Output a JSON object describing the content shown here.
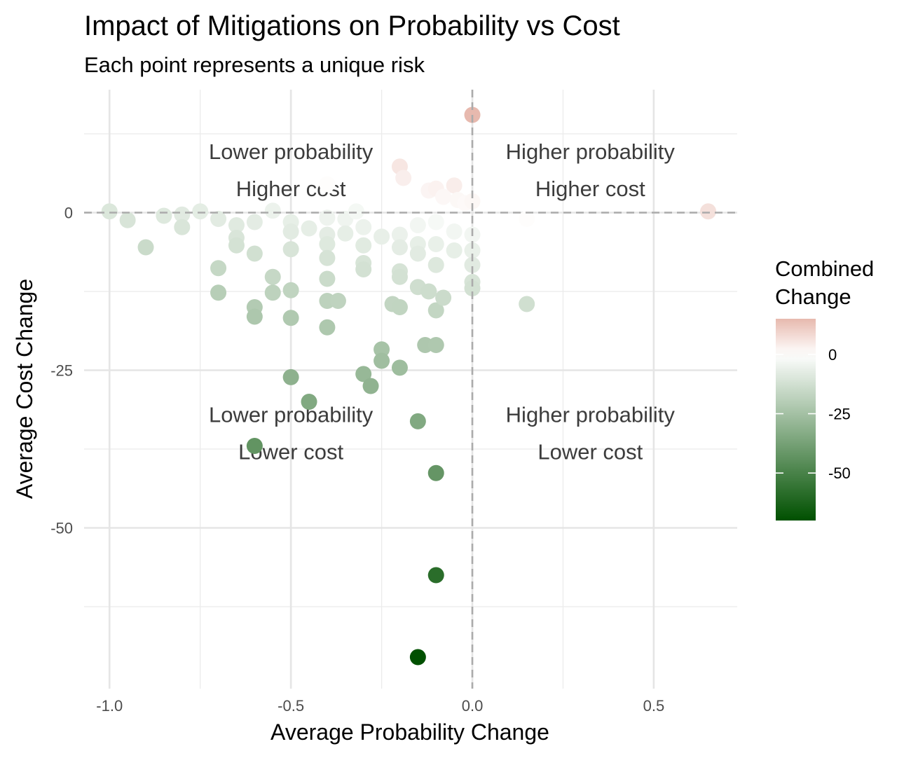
{
  "chart_data": {
    "type": "scatter",
    "title": "Impact of Mitigations on Probability vs Cost",
    "subtitle": "Each point represents a unique risk",
    "xlabel": "Average Probability Change",
    "ylabel": "Average Cost Change",
    "xlim": [
      -1.07,
      0.73
    ],
    "ylim": [
      -75.5,
      19.5
    ],
    "x_ticks": [
      -1.0,
      -0.5,
      0.0,
      0.5
    ],
    "x_tick_labels": [
      "-1.0",
      "-0.5",
      "0.0",
      "0.5"
    ],
    "y_ticks": [
      -50,
      -25,
      0
    ],
    "y_tick_labels": [
      "-50",
      "-25",
      "0"
    ],
    "grid": true,
    "reference_lines": {
      "x": 0,
      "y": 0
    },
    "quadrant_labels": [
      {
        "lines": [
          "Lower probability",
          "Higher cost"
        ]
      },
      {
        "lines": [
          "Higher probability",
          "Higher cost"
        ]
      },
      {
        "lines": [
          "Lower probability",
          "Lower cost"
        ]
      },
      {
        "lines": [
          "Higher probability",
          "Lower cost"
        ]
      }
    ],
    "legend": {
      "title": [
        "Combined",
        "Change"
      ],
      "placement": "right",
      "min": -70,
      "max": 15,
      "ticks": [
        0,
        -25,
        -50
      ],
      "tick_labels": [
        "0",
        "-25",
        "-50"
      ],
      "low_color": "#005000",
      "mid_color": "#ffffff",
      "high_color": "#e7b9ae"
    },
    "points": [
      {
        "x": 0.0,
        "y": 15.5
      },
      {
        "x": -0.2,
        "y": 7.3
      },
      {
        "x": -0.19,
        "y": 5.5
      },
      {
        "x": -0.05,
        "y": 4.3
      },
      {
        "x": -0.12,
        "y": 3.5
      },
      {
        "x": -0.1,
        "y": 3.8
      },
      {
        "x": -0.08,
        "y": 2.5
      },
      {
        "x": -0.04,
        "y": 2.0
      },
      {
        "x": -0.4,
        "y": 4.5
      },
      {
        "x": -0.02,
        "y": 1.5
      },
      {
        "x": 0.0,
        "y": 1.8
      },
      {
        "x": -1.0,
        "y": 0.2
      },
      {
        "x": -0.95,
        "y": -1.2
      },
      {
        "x": -0.9,
        "y": -5.5
      },
      {
        "x": -0.85,
        "y": -0.5
      },
      {
        "x": -0.8,
        "y": -0.3
      },
      {
        "x": -0.8,
        "y": -2.3
      },
      {
        "x": -0.75,
        "y": 0.2
      },
      {
        "x": -0.7,
        "y": -1.0
      },
      {
        "x": -0.7,
        "y": -8.8
      },
      {
        "x": -0.7,
        "y": -12.7
      },
      {
        "x": -0.65,
        "y": -2.0
      },
      {
        "x": -0.65,
        "y": -4.0
      },
      {
        "x": -0.65,
        "y": -5.2
      },
      {
        "x": -0.6,
        "y": -1.5
      },
      {
        "x": -0.6,
        "y": -6.5
      },
      {
        "x": -0.6,
        "y": -15.0
      },
      {
        "x": -0.6,
        "y": -16.5
      },
      {
        "x": -0.6,
        "y": -37.0
      },
      {
        "x": -0.55,
        "y": 0.3
      },
      {
        "x": -0.55,
        "y": -10.2
      },
      {
        "x": -0.55,
        "y": -12.7
      },
      {
        "x": -0.5,
        "y": -1.5
      },
      {
        "x": -0.5,
        "y": -3.0
      },
      {
        "x": -0.5,
        "y": -5.8
      },
      {
        "x": -0.5,
        "y": -12.3
      },
      {
        "x": -0.5,
        "y": -16.7
      },
      {
        "x": -0.5,
        "y": -26.1
      },
      {
        "x": -0.45,
        "y": -2.5
      },
      {
        "x": -0.45,
        "y": -30.0
      },
      {
        "x": -0.4,
        "y": -0.8
      },
      {
        "x": -0.4,
        "y": -3.5
      },
      {
        "x": -0.4,
        "y": -5.0
      },
      {
        "x": -0.4,
        "y": -7.2
      },
      {
        "x": -0.4,
        "y": -10.5
      },
      {
        "x": -0.4,
        "y": -14.0
      },
      {
        "x": -0.4,
        "y": -18.2
      },
      {
        "x": -0.37,
        "y": -14.0
      },
      {
        "x": -0.35,
        "y": -1.0
      },
      {
        "x": -0.35,
        "y": -3.3
      },
      {
        "x": -0.32,
        "y": 0.2
      },
      {
        "x": -0.3,
        "y": -2.3
      },
      {
        "x": -0.3,
        "y": -5.2
      },
      {
        "x": -0.3,
        "y": -8.0
      },
      {
        "x": -0.3,
        "y": -9.0
      },
      {
        "x": -0.3,
        "y": -25.6
      },
      {
        "x": -0.28,
        "y": -27.5
      },
      {
        "x": -0.25,
        "y": -3.8
      },
      {
        "x": -0.25,
        "y": -21.7
      },
      {
        "x": -0.25,
        "y": -23.5
      },
      {
        "x": -0.22,
        "y": -14.5
      },
      {
        "x": -0.2,
        "y": -3.5
      },
      {
        "x": -0.2,
        "y": -5.5
      },
      {
        "x": -0.2,
        "y": -9.3
      },
      {
        "x": -0.2,
        "y": -10.2
      },
      {
        "x": -0.2,
        "y": -15.0
      },
      {
        "x": -0.2,
        "y": -24.6
      },
      {
        "x": -0.15,
        "y": -2.0
      },
      {
        "x": -0.15,
        "y": -5.0
      },
      {
        "x": -0.15,
        "y": -6.5
      },
      {
        "x": -0.15,
        "y": -11.8
      },
      {
        "x": -0.15,
        "y": -33.1
      },
      {
        "x": -0.15,
        "y": -70.5
      },
      {
        "x": -0.13,
        "y": -21.0
      },
      {
        "x": -0.12,
        "y": -12.5
      },
      {
        "x": -0.1,
        "y": -1.5
      },
      {
        "x": -0.1,
        "y": -5.0
      },
      {
        "x": -0.1,
        "y": -8.3
      },
      {
        "x": -0.1,
        "y": -15.5
      },
      {
        "x": -0.1,
        "y": -21.0
      },
      {
        "x": -0.1,
        "y": -41.3
      },
      {
        "x": -0.1,
        "y": -57.5
      },
      {
        "x": -0.08,
        "y": -13.5
      },
      {
        "x": -0.05,
        "y": -3.0
      },
      {
        "x": -0.05,
        "y": -6.0
      },
      {
        "x": 0.0,
        "y": -3.5
      },
      {
        "x": 0.0,
        "y": -6.0
      },
      {
        "x": 0.0,
        "y": -8.3
      },
      {
        "x": 0.0,
        "y": -11.0
      },
      {
        "x": 0.0,
        "y": -12.0
      },
      {
        "x": 0.15,
        "y": -1.0
      },
      {
        "x": 0.15,
        "y": -14.5
      },
      {
        "x": 0.65,
        "y": 0.2
      }
    ]
  }
}
